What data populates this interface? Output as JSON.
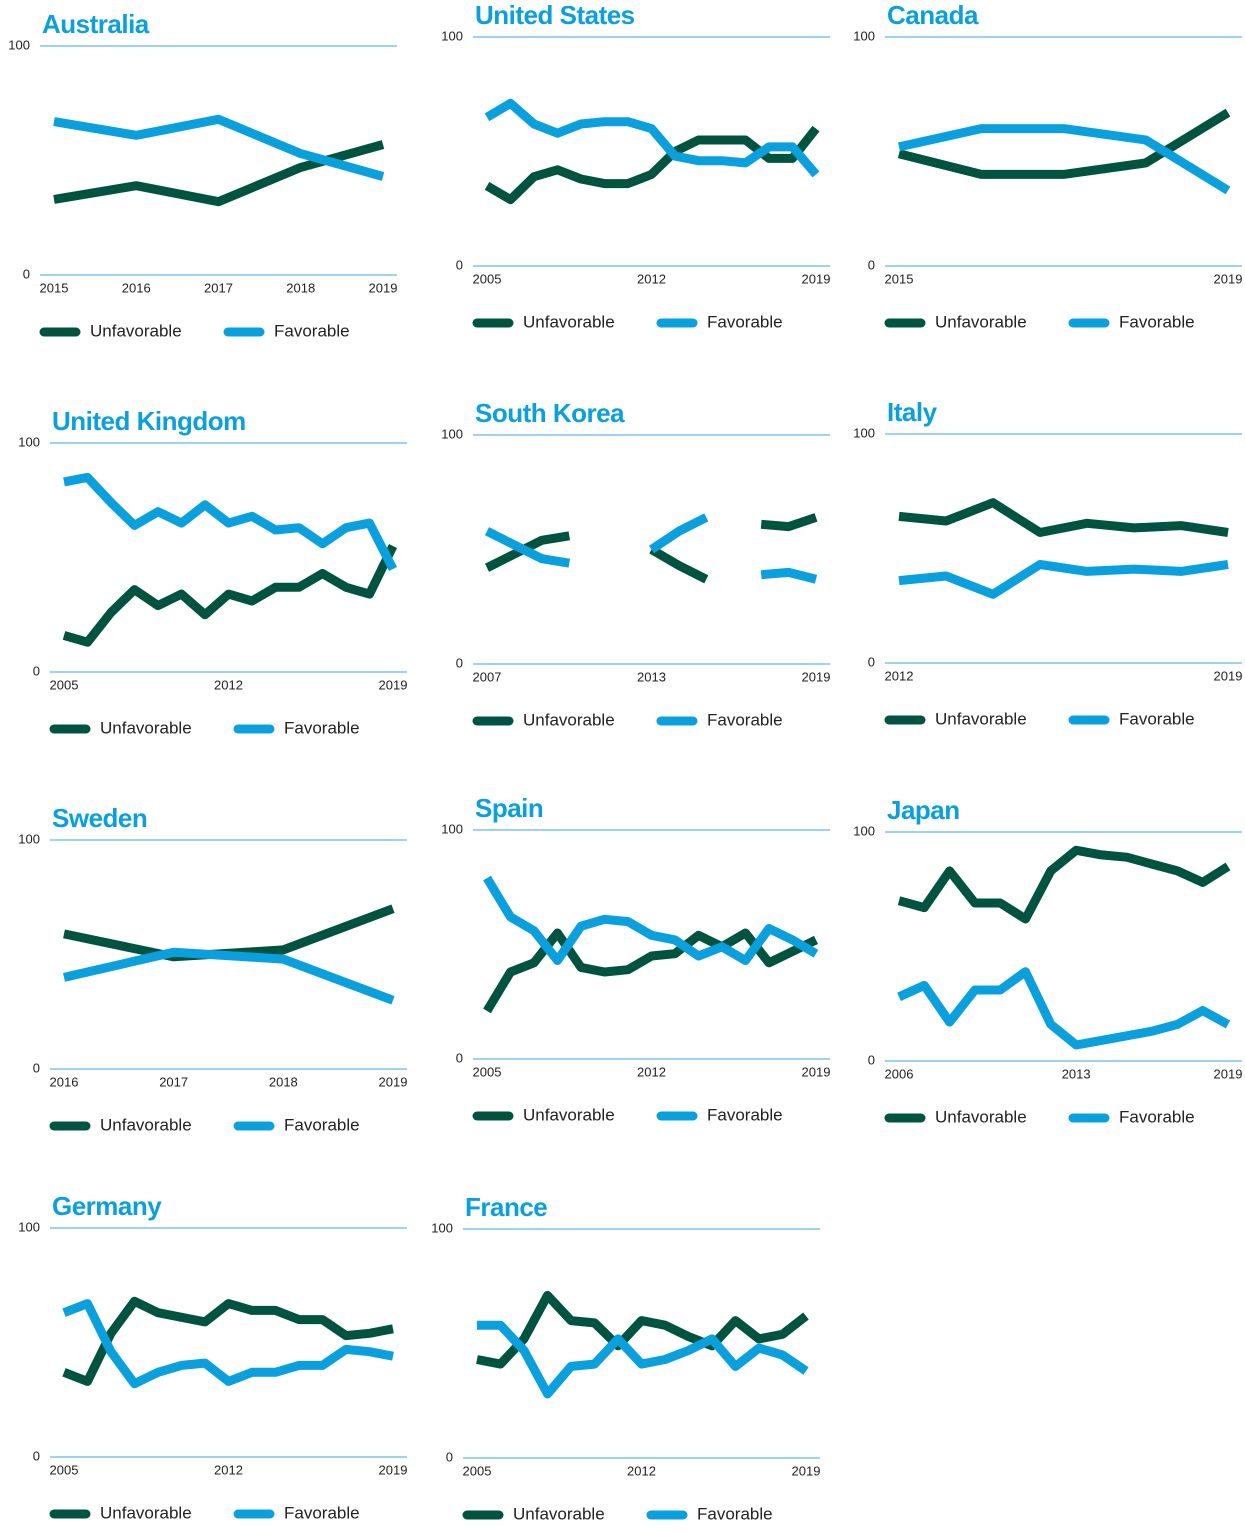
{
  "chart_data": [
    {
      "type": "line",
      "title": "Australia",
      "x": [
        2015,
        2016,
        2017,
        2018,
        2019
      ],
      "xticks": [
        2015,
        2016,
        2017,
        2018,
        2019
      ],
      "ylim": [
        0,
        100
      ],
      "yticks": [
        0,
        100
      ],
      "series": [
        {
          "name": "Unfavorable",
          "color": "#00543f",
          "values": [
            33,
            39,
            32,
            47,
            57
          ]
        },
        {
          "name": "Favorable",
          "color": "#0aa0dd",
          "values": [
            67,
            61,
            68,
            53,
            43
          ]
        }
      ]
    },
    {
      "type": "line",
      "title": "United States",
      "x": [
        2005,
        2006,
        2007,
        2008,
        2009,
        2010,
        2011,
        2012,
        2013,
        2014,
        2015,
        2016,
        2017,
        2018,
        2019
      ],
      "xticks": [
        2005,
        2012,
        2019
      ],
      "ylim": [
        0,
        100
      ],
      "yticks": [
        0,
        100
      ],
      "series": [
        {
          "name": "Unfavorable",
          "color": "#00543f",
          "values": [
            35,
            29,
            39,
            42,
            38,
            36,
            36,
            40,
            50,
            55,
            55,
            55,
            47,
            47,
            60
          ]
        },
        {
          "name": "Favorable",
          "color": "#0aa0dd",
          "values": [
            65,
            71,
            62,
            58,
            62,
            63,
            63,
            60,
            48,
            46,
            46,
            45,
            52,
            52,
            40
          ]
        }
      ]
    },
    {
      "type": "line",
      "title": "Canada",
      "x": [
        2015,
        2016,
        2017,
        2018,
        2019
      ],
      "xticks": [
        2015,
        2019
      ],
      "ylim": [
        0,
        100
      ],
      "yticks": [
        0,
        100
      ],
      "series": [
        {
          "name": "Unfavorable",
          "color": "#00543f",
          "values": [
            49,
            40,
            40,
            45,
            67
          ]
        },
        {
          "name": "Favorable",
          "color": "#0aa0dd",
          "values": [
            52,
            60,
            60,
            55,
            33
          ]
        }
      ]
    },
    {
      "type": "line",
      "title": "United Kingdom",
      "x": [
        2005,
        2006,
        2007,
        2008,
        2009,
        2010,
        2011,
        2012,
        2013,
        2014,
        2015,
        2016,
        2017,
        2018,
        2019
      ],
      "xticks": [
        2005,
        2012,
        2019
      ],
      "ylim": [
        0,
        100
      ],
      "yticks": [
        0,
        100
      ],
      "series": [
        {
          "name": "Unfavorable",
          "color": "#00543f",
          "values": [
            16,
            13,
            26,
            36,
            29,
            34,
            25,
            34,
            31,
            37,
            37,
            43,
            37,
            34,
            55
          ]
        },
        {
          "name": "Favorable",
          "color": "#0aa0dd",
          "values": [
            83,
            85,
            74,
            64,
            70,
            65,
            73,
            65,
            68,
            62,
            63,
            56,
            63,
            65,
            45
          ]
        }
      ]
    },
    {
      "type": "line",
      "title": "South Korea",
      "x": [
        2007,
        2009,
        2010,
        2011,
        2013,
        2014,
        2015,
        2016,
        2017,
        2018,
        2019
      ],
      "xticks": [
        2007,
        2013,
        2019
      ],
      "ylim": [
        0,
        100
      ],
      "yticks": [
        0,
        100
      ],
      "series": [
        {
          "name": "Unfavorable",
          "color": "#00543f",
          "values": [
            42,
            54,
            56,
            null,
            50,
            43,
            37,
            null,
            61,
            60,
            64
          ]
        },
        {
          "name": "Favorable",
          "color": "#0aa0dd",
          "values": [
            58,
            46,
            44,
            null,
            50,
            58,
            64,
            null,
            39,
            40,
            37
          ]
        }
      ]
    },
    {
      "type": "line",
      "title": "Italy",
      "x": [
        2012,
        2013,
        2014,
        2015,
        2016,
        2017,
        2018,
        2019
      ],
      "xticks": [
        2012,
        2019
      ],
      "ylim": [
        0,
        100
      ],
      "yticks": [
        0,
        100
      ],
      "series": [
        {
          "name": "Unfavorable",
          "color": "#00543f",
          "values": [
            64,
            62,
            70,
            57,
            61,
            59,
            60,
            57
          ]
        },
        {
          "name": "Favorable",
          "color": "#0aa0dd",
          "values": [
            36,
            38,
            30,
            43,
            40,
            41,
            40,
            43
          ]
        }
      ]
    },
    {
      "type": "line",
      "title": "Sweden",
      "x": [
        2016,
        2017,
        2018,
        2019
      ],
      "xticks": [
        2016,
        2017,
        2018,
        2019
      ],
      "ylim": [
        0,
        100
      ],
      "yticks": [
        0,
        100
      ],
      "series": [
        {
          "name": "Unfavorable",
          "color": "#00543f",
          "values": [
            59,
            49,
            52,
            70
          ]
        },
        {
          "name": "Favorable",
          "color": "#0aa0dd",
          "values": [
            40,
            51,
            48,
            30
          ]
        }
      ]
    },
    {
      "type": "line",
      "title": "Spain",
      "x": [
        2005,
        2006,
        2007,
        2008,
        2009,
        2010,
        2011,
        2012,
        2013,
        2014,
        2015,
        2016,
        2017,
        2018,
        2019
      ],
      "xticks": [
        2005,
        2012,
        2019
      ],
      "ylim": [
        0,
        100
      ],
      "yticks": [
        0,
        100
      ],
      "series": [
        {
          "name": "Unfavorable",
          "color": "#00543f",
          "values": [
            21,
            38,
            42,
            55,
            40,
            38,
            39,
            45,
            46,
            54,
            49,
            55,
            42,
            47,
            52
          ]
        },
        {
          "name": "Favorable",
          "color": "#0aa0dd",
          "values": [
            79,
            62,
            56,
            43,
            58,
            61,
            60,
            54,
            52,
            45,
            49,
            43,
            57,
            52,
            46
          ]
        }
      ]
    },
    {
      "type": "line",
      "title": "Japan",
      "x": [
        2006,
        2007,
        2008,
        2009,
        2010,
        2011,
        2012,
        2013,
        2014,
        2015,
        2016,
        2017,
        2018,
        2019
      ],
      "xticks": [
        2006,
        2013,
        2019
      ],
      "ylim": [
        0,
        100
      ],
      "yticks": [
        0,
        100
      ],
      "series": [
        {
          "name": "Unfavorable",
          "color": "#00543f",
          "values": [
            70,
            67,
            83,
            69,
            69,
            62,
            83,
            92,
            90,
            89,
            86,
            83,
            78,
            85
          ]
        },
        {
          "name": "Favorable",
          "color": "#0aa0dd",
          "values": [
            28,
            33,
            17,
            31,
            31,
            39,
            16,
            7,
            9,
            11,
            13,
            16,
            22,
            16
          ]
        }
      ]
    },
    {
      "type": "line",
      "title": "Germany",
      "x": [
        2005,
        2006,
        2007,
        2008,
        2009,
        2010,
        2011,
        2012,
        2013,
        2014,
        2015,
        2016,
        2017,
        2018,
        2019
      ],
      "xticks": [
        2005,
        2012,
        2019
      ],
      "ylim": [
        0,
        100
      ],
      "yticks": [
        0,
        100
      ],
      "series": [
        {
          "name": "Unfavorable",
          "color": "#00543f",
          "values": [
            37,
            33,
            54,
            68,
            63,
            61,
            59,
            67,
            64,
            64,
            60,
            60,
            53,
            54,
            56
          ]
        },
        {
          "name": "Favorable",
          "color": "#0aa0dd",
          "values": [
            63,
            67,
            46,
            32,
            37,
            40,
            41,
            33,
            37,
            37,
            40,
            40,
            47,
            46,
            44
          ]
        }
      ]
    },
    {
      "type": "line",
      "title": "France",
      "x": [
        2005,
        2006,
        2007,
        2008,
        2009,
        2010,
        2011,
        2012,
        2013,
        2014,
        2015,
        2016,
        2017,
        2018,
        2019
      ],
      "xticks": [
        2005,
        2012,
        2019
      ],
      "ylim": [
        0,
        100
      ],
      "yticks": [
        0,
        100
      ],
      "series": [
        {
          "name": "Unfavorable",
          "color": "#00543f",
          "values": [
            43,
            41,
            52,
            71,
            60,
            59,
            49,
            60,
            58,
            53,
            49,
            60,
            52,
            54,
            62
          ]
        },
        {
          "name": "Favorable",
          "color": "#0aa0dd",
          "values": [
            58,
            58,
            47,
            28,
            40,
            41,
            52,
            41,
            43,
            47,
            52,
            40,
            48,
            45,
            38
          ]
        }
      ]
    }
  ]
}
